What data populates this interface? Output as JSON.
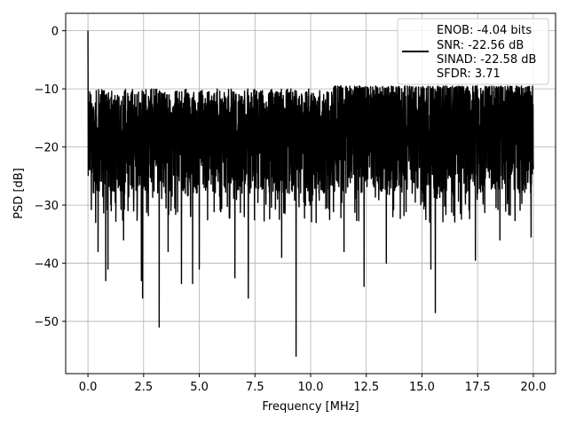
{
  "chart_data": {
    "type": "line",
    "xlabel": "Frequency [MHz]",
    "ylabel": "PSD [dB]",
    "xlim": [
      -1.0,
      21.0
    ],
    "ylim": [
      -59,
      3
    ],
    "x_ticks": [
      0.0,
      2.5,
      5.0,
      7.5,
      10.0,
      12.5,
      15.0,
      17.5,
      20.0
    ],
    "x_tick_labels": [
      "0.0",
      "2.5",
      "5.0",
      "7.5",
      "10.0",
      "12.5",
      "15.0",
      "17.5",
      "20.0"
    ],
    "y_ticks": [
      0,
      -10,
      -20,
      -30,
      -40,
      -50
    ],
    "y_tick_labels": [
      "0",
      "−10",
      "−20",
      "−30",
      "−40",
      "−50"
    ],
    "grid": true,
    "legend_position": "top-right",
    "series": [
      {
        "color": "#000000",
        "x_range": [
          0.0,
          20.0
        ],
        "noise_band_db": [
          -28,
          -10
        ],
        "peaks": [
          {
            "x": 0.0,
            "y": 0
          }
        ],
        "dips": [
          {
            "x": 0.35,
            "y": -33
          },
          {
            "x": 0.45,
            "y": -38
          },
          {
            "x": 0.8,
            "y": -43
          },
          {
            "x": 0.9,
            "y": -41
          },
          {
            "x": 1.6,
            "y": -36
          },
          {
            "x": 2.4,
            "y": -43
          },
          {
            "x": 2.45,
            "y": -46
          },
          {
            "x": 3.2,
            "y": -51
          },
          {
            "x": 3.6,
            "y": -38
          },
          {
            "x": 4.2,
            "y": -43.5
          },
          {
            "x": 4.7,
            "y": -43.5
          },
          {
            "x": 5.0,
            "y": -41
          },
          {
            "x": 6.6,
            "y": -42.5
          },
          {
            "x": 7.2,
            "y": -46
          },
          {
            "x": 8.7,
            "y": -39
          },
          {
            "x": 9.35,
            "y": -56
          },
          {
            "x": 11.5,
            "y": -38
          },
          {
            "x": 12.4,
            "y": -44
          },
          {
            "x": 13.4,
            "y": -40
          },
          {
            "x": 15.4,
            "y": -41
          },
          {
            "x": 15.6,
            "y": -48.5
          },
          {
            "x": 17.4,
            "y": -39.5
          },
          {
            "x": 18.5,
            "y": -36
          },
          {
            "x": 19.9,
            "y": -35.5
          }
        ]
      }
    ],
    "legend": {
      "lines": [
        "ENOB: -4.04 bits",
        "SNR: -22.56 dB",
        "SINAD: -22.58 dB",
        "SFDR: 3.71"
      ]
    }
  }
}
